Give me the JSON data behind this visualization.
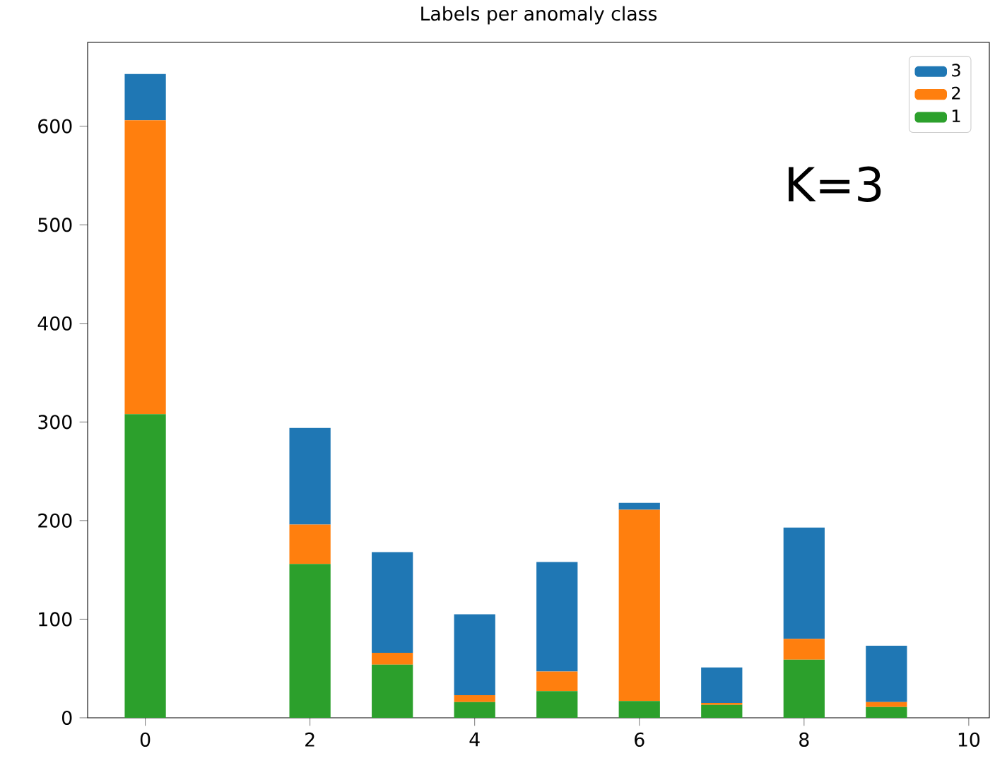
{
  "chart_data": {
    "type": "bar",
    "title": "Labels per anomaly class",
    "stacked": true,
    "x": [
      0,
      2,
      3,
      4,
      5,
      6,
      7,
      8,
      9
    ],
    "series": [
      {
        "name": "1",
        "color": "#2ca02c",
        "values": [
          308,
          156,
          54,
          16,
          27,
          17,
          13,
          59,
          11
        ]
      },
      {
        "name": "2",
        "color": "#ff7f0e",
        "values": [
          298,
          40,
          12,
          7,
          20,
          194,
          2,
          21,
          5
        ]
      },
      {
        "name": "3",
        "color": "#1f77b4",
        "values": [
          47,
          98,
          102,
          82,
          111,
          7,
          36,
          113,
          57
        ]
      }
    ],
    "xlim": [
      -0.7,
      10.25
    ],
    "ylim": [
      0,
      685
    ],
    "xticks": [
      0,
      2,
      4,
      6,
      8,
      10
    ],
    "yticks": [
      0,
      100,
      200,
      300,
      400,
      500,
      600
    ],
    "legend": "top right",
    "annotations": [
      "K=3"
    ]
  }
}
